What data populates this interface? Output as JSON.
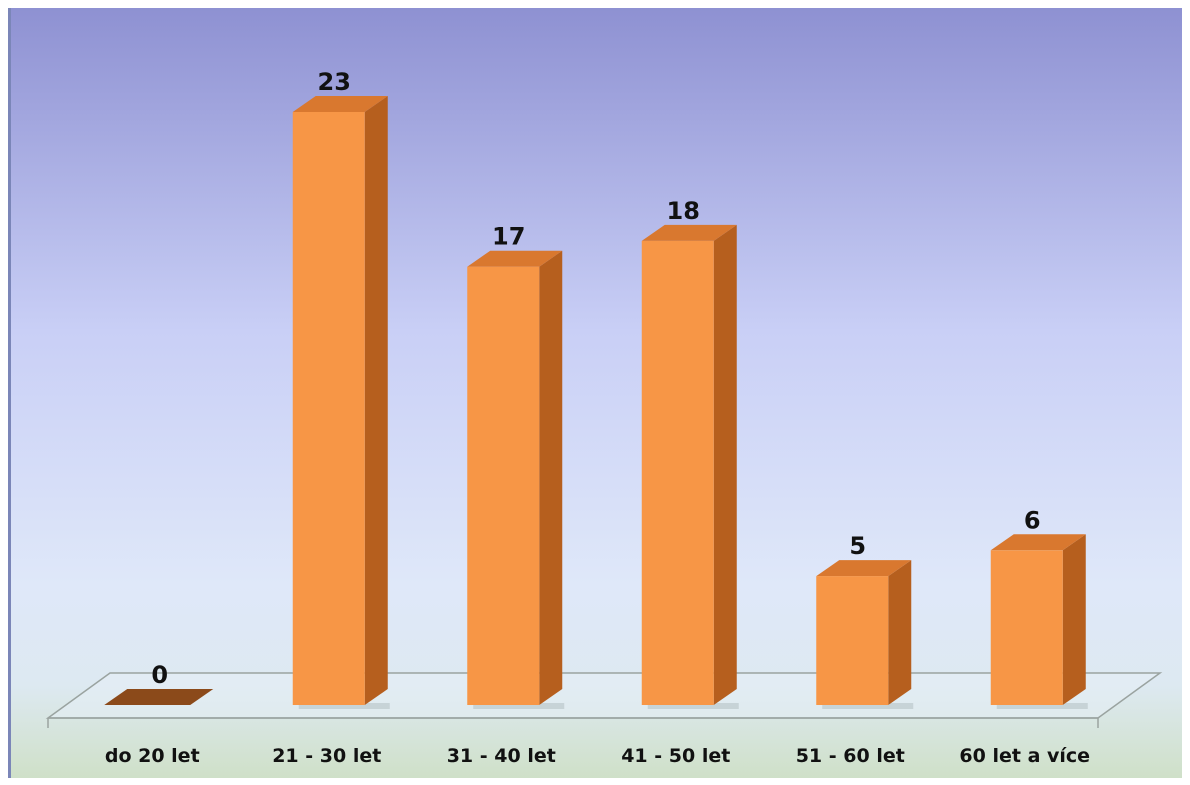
{
  "chart_data": {
    "type": "bar",
    "style": "3d-column",
    "categories": [
      "do 20 let",
      "21 - 30 let",
      "31 - 40 let",
      "41 - 50 let",
      "51 - 60 let",
      "60 let a více"
    ],
    "values": [
      0,
      23,
      17,
      18,
      5,
      6
    ],
    "title": "",
    "xlabel": "",
    "ylabel": "",
    "ylim": [
      0,
      23
    ],
    "grid": false,
    "legend": "none",
    "data_labels": true
  },
  "colors": {
    "bar_front": "#f79646",
    "bar_side": "#b65f1e",
    "bar_top": "#d9782f",
    "zero_bar": "#8b4a1a",
    "background_top": "#9094d6",
    "background_mid": "#c7cdf6",
    "background_low": "#dbe5f8",
    "floor_band": "#d4e3d3",
    "floor_line": "#9aa3a0"
  }
}
